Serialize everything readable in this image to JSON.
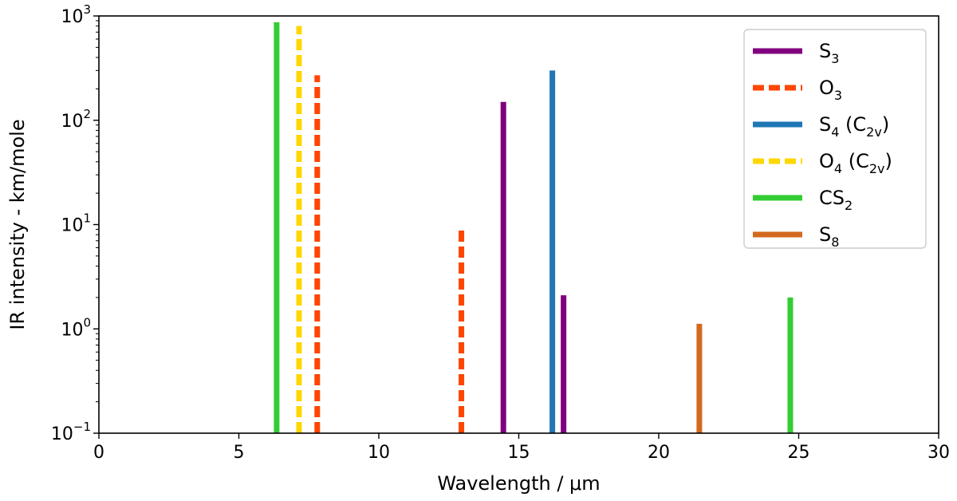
{
  "chart_data": {
    "type": "bar",
    "title": "",
    "xlabel": "Wavelength / μm",
    "ylabel": "IR intensity - km/mole",
    "xlim": [
      0,
      30
    ],
    "ylim": [
      0.1,
      1000
    ],
    "yscale": "log",
    "grid": false,
    "legend_position": "top-right",
    "x_ticks": [
      "0",
      "5",
      "10",
      "15",
      "20",
      "25",
      "30"
    ],
    "y_ticks": [
      {
        "base": "10",
        "exp": "−1",
        "value": 0.1
      },
      {
        "base": "10",
        "exp": "0",
        "value": 1
      },
      {
        "base": "10",
        "exp": "1",
        "value": 10
      },
      {
        "base": "10",
        "exp": "2",
        "value": 100
      },
      {
        "base": "10",
        "exp": "3",
        "value": 1000
      }
    ],
    "series": [
      {
        "name": "S3",
        "label_main": "S",
        "label_sub": "3",
        "label_rest": "",
        "label_sub2": "",
        "label_tail": "",
        "color": "#800080",
        "style": "solid",
        "bars": [
          {
            "x": 14.45,
            "y": 150
          },
          {
            "x": 16.6,
            "y": 2.1
          }
        ]
      },
      {
        "name": "O3",
        "label_main": "O",
        "label_sub": "3",
        "label_rest": "",
        "label_sub2": "",
        "label_tail": "",
        "color": "#ff4500",
        "style": "dashed",
        "bars": [
          {
            "x": 7.8,
            "y": 270
          },
          {
            "x": 12.95,
            "y": 8.8
          }
        ]
      },
      {
        "name": "S4 (C2v)",
        "label_main": "S",
        "label_sub": "4",
        "label_rest": " (C",
        "label_sub2": "2v",
        "label_tail": ")",
        "color": "#1f77b4",
        "style": "solid",
        "bars": [
          {
            "x": 16.2,
            "y": 300
          }
        ]
      },
      {
        "name": "O4 (C2v)",
        "label_main": "O",
        "label_sub": "4",
        "label_rest": " (C",
        "label_sub2": "2v",
        "label_tail": ")",
        "color": "#ffd700",
        "style": "dashed",
        "bars": [
          {
            "x": 7.15,
            "y": 800
          }
        ]
      },
      {
        "name": "CS2",
        "label_main": "CS",
        "label_sub": "2",
        "label_rest": "",
        "label_sub2": "",
        "label_tail": "",
        "color": "#32cd32",
        "style": "solid",
        "bars": [
          {
            "x": 6.35,
            "y": 870
          },
          {
            "x": 24.7,
            "y": 2.0
          }
        ]
      },
      {
        "name": "S8",
        "label_main": "S",
        "label_sub": "8",
        "label_rest": "",
        "label_sub2": "",
        "label_tail": "",
        "color": "#d2691e",
        "style": "solid",
        "bars": [
          {
            "x": 21.45,
            "y": 1.12
          }
        ]
      }
    ]
  }
}
